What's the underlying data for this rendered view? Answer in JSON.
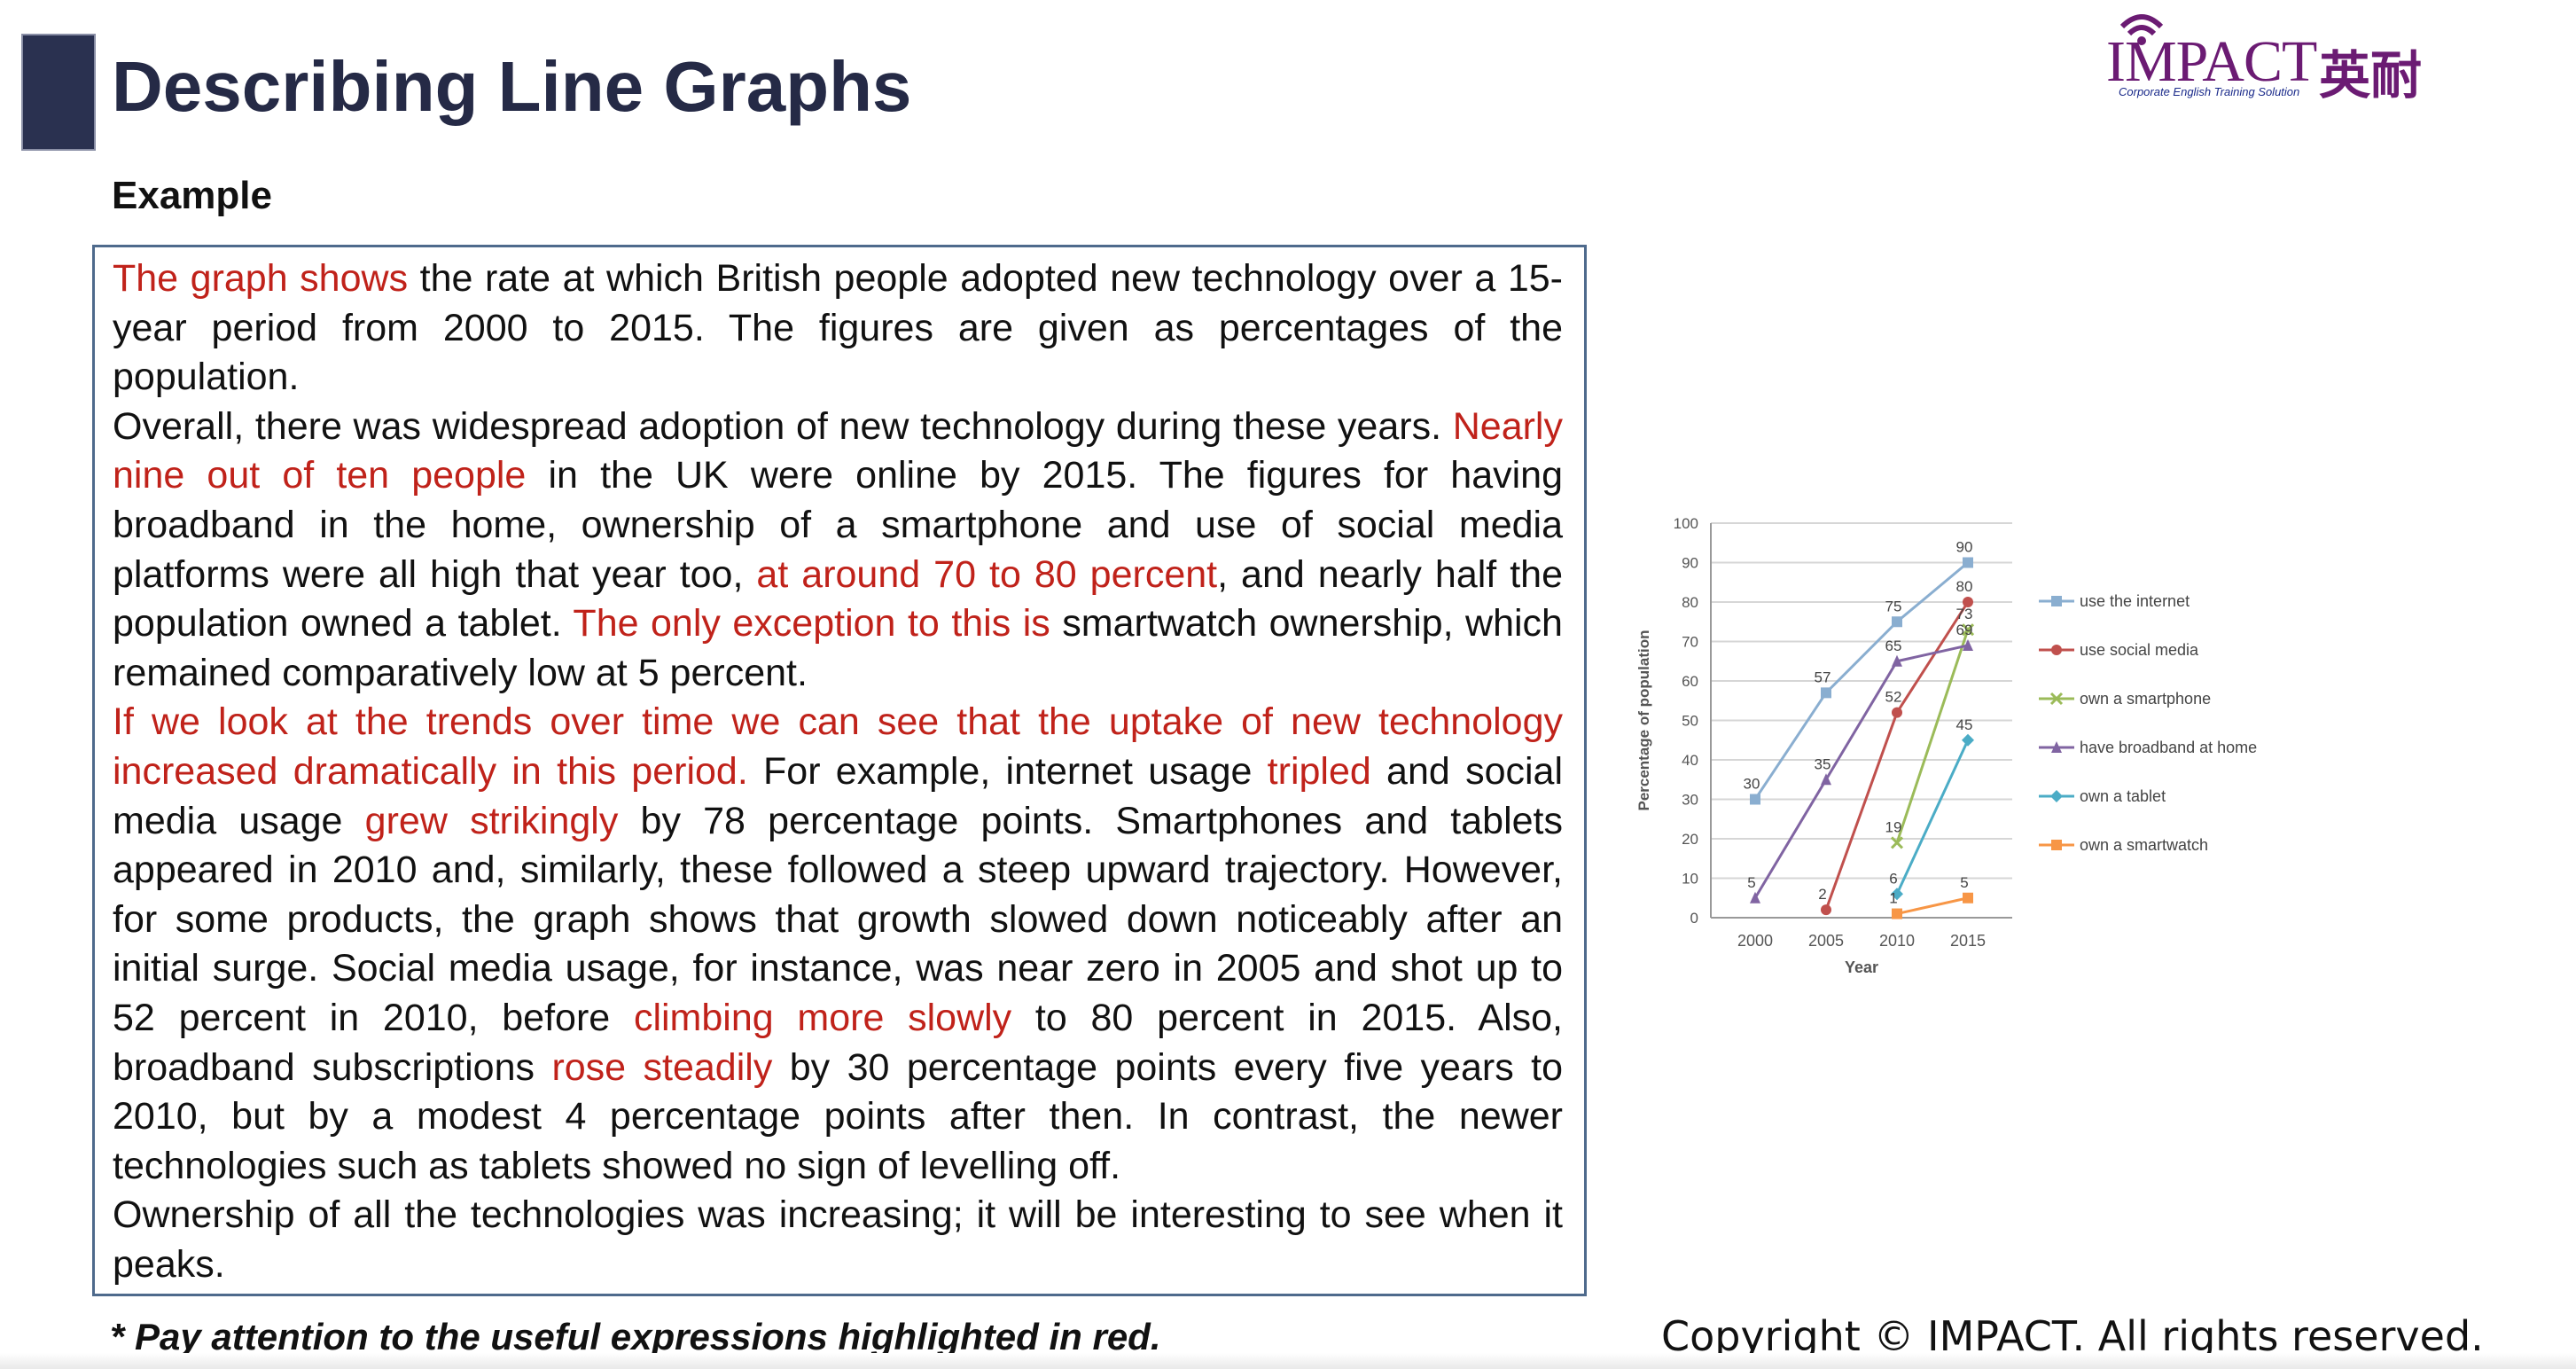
{
  "slide": {
    "title": "Describing Line Graphs",
    "subtitle": "Example",
    "note": "* Pay attention to the useful expressions highlighted in red.",
    "copyright": "Copyright © IMPACT. All rights reserved."
  },
  "logo": {
    "text": "IMPACT",
    "chinese": "英耐",
    "tagline": "Corporate English Training Solution"
  },
  "paragraphs": [
    {
      "segments": [
        {
          "text": "The graph shows",
          "red": true
        },
        {
          "text": " the rate at which British people adopted new technology over a 15-year period from 2000 to 2015. The figures are given as percentages of the population.",
          "red": false
        }
      ]
    },
    {
      "segments": [
        {
          "text": "Overall, there was widespread adoption of new technology during these years. ",
          "red": false
        },
        {
          "text": "Nearly nine out of ten people",
          "red": true
        },
        {
          "text": " in the UK were online by 2015. The figures for having broadband in the home, ownership of a smartphone and use of social media platforms were all high that year too, ",
          "red": false
        },
        {
          "text": "at around 70 to 80 percent",
          "red": true
        },
        {
          "text": ", and nearly half the population owned a tablet. ",
          "red": false
        },
        {
          "text": "The only exception to this is",
          "red": true
        },
        {
          "text": " smartwatch ownership, which remained comparatively low at 5 percent.",
          "red": false
        }
      ]
    },
    {
      "segments": [
        {
          "text": "If we look at the trends over time we can see that the uptake of new technology increased dramatically in this period.",
          "red": true
        },
        {
          "text": " For example, internet usage ",
          "red": false
        },
        {
          "text": "tripled",
          "red": true
        },
        {
          "text": " and social media usage ",
          "red": false
        },
        {
          "text": "grew strikingly",
          "red": true
        },
        {
          "text": " by 78 percentage points. Smartphones and tablets appeared in 2010 and, similarly, these followed a steep upward trajectory. However, for some products, the graph shows that growth slowed down noticeably after an initial surge. Social media usage, for instance, was near zero in 2005 and shot up to 52 percent in 2010, before ",
          "red": false
        },
        {
          "text": "climbing more slowly",
          "red": true
        },
        {
          "text": " to 80 percent in 2015. Also, broadband subscriptions ",
          "red": false
        },
        {
          "text": "rose steadily",
          "red": true
        },
        {
          "text": " by 30 percentage points every five years to 2010, but by a modest 4 percentage points after then. In contrast, the newer technologies such as tablets showed no sign of levelling off.",
          "red": false
        }
      ]
    },
    {
      "segments": [
        {
          "text": "Ownership of all the technologies was increasing; it will be interesting to see when it peaks.",
          "red": false
        }
      ]
    }
  ],
  "chart_data": {
    "type": "line",
    "x": [
      2000,
      2005,
      2010,
      2015
    ],
    "xlabel": "Year",
    "ylabel": "Percentage of population",
    "ylim": [
      0,
      100
    ],
    "yticks": [
      0,
      10,
      20,
      30,
      40,
      50,
      60,
      70,
      80,
      90,
      100
    ],
    "grid": true,
    "legend": "right",
    "series": [
      {
        "name": "use the internet",
        "color": "#8aaed0",
        "marker": "square",
        "values": [
          30,
          57,
          75,
          90
        ],
        "labels": [
          "30",
          "57",
          "75",
          "90"
        ]
      },
      {
        "name": "use social media",
        "color": "#c0504d",
        "marker": "circle",
        "values": [
          null,
          2,
          52,
          80
        ],
        "labels": [
          "",
          "2",
          "52",
          "80"
        ]
      },
      {
        "name": "own a smartphone",
        "color": "#9bbb59",
        "marker": "x",
        "values": [
          null,
          null,
          19,
          73
        ],
        "labels": [
          "",
          "",
          "19",
          "73"
        ]
      },
      {
        "name": "have broadband at home",
        "color": "#8064a2",
        "marker": "triangle",
        "values": [
          5,
          35,
          65,
          69
        ],
        "labels": [
          "5",
          "35",
          "65",
          "69"
        ]
      },
      {
        "name": "own a tablet",
        "color": "#4bacc6",
        "marker": "diamond",
        "values": [
          null,
          null,
          6,
          45
        ],
        "labels": [
          "",
          "",
          "6",
          "45"
        ]
      },
      {
        "name": "own a smartwatch",
        "color": "#f79646",
        "marker": "square",
        "values": [
          null,
          null,
          1,
          5
        ],
        "labels": [
          "",
          "",
          "1",
          "5"
        ]
      }
    ]
  }
}
